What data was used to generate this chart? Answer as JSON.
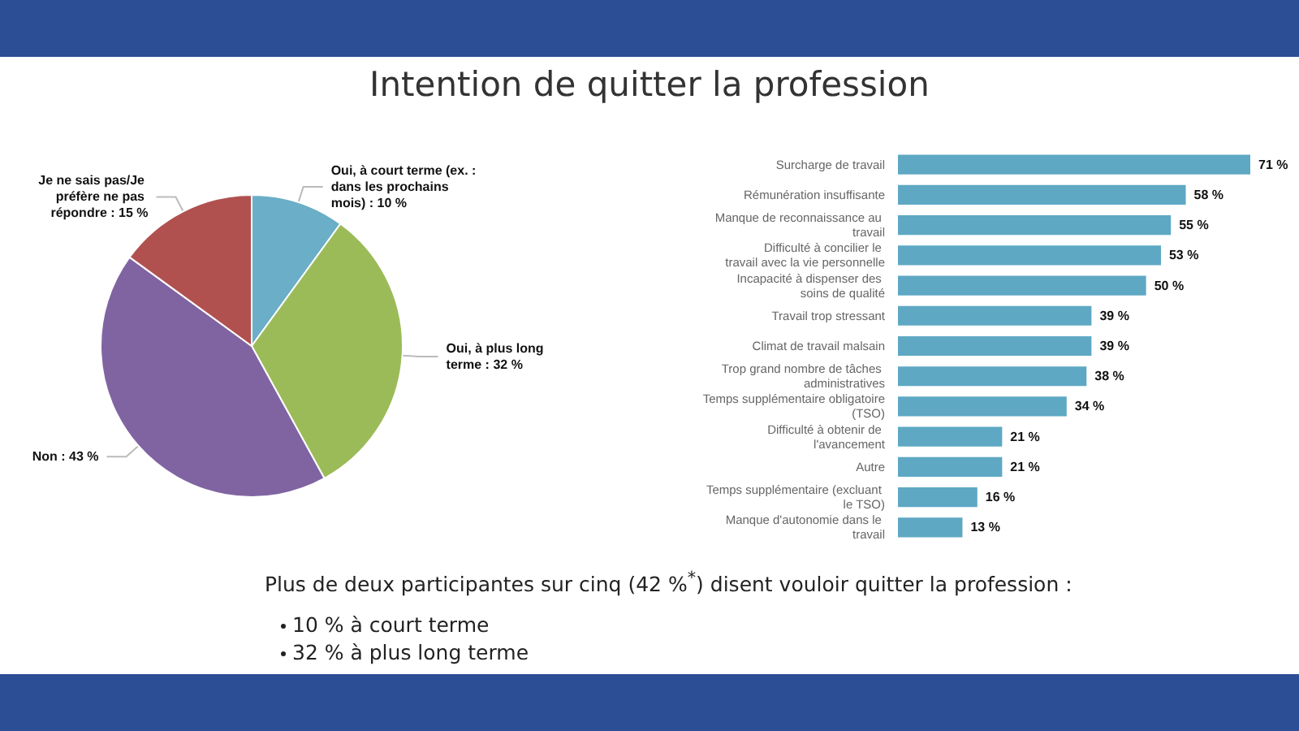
{
  "chart_data": [
    {
      "type": "pie",
      "title": "Intention de quitter la profession",
      "categories": [
        "Oui, à court terme (ex. : dans les prochains mois)",
        "Oui, à plus long terme",
        "Non",
        "Je ne sais pas/Je préfère ne pas répondre"
      ],
      "values": [
        10,
        32,
        43,
        15
      ],
      "value_labels": [
        "10 %",
        "32 %",
        "43 %",
        "15 %"
      ],
      "colors": [
        "#6aaec8",
        "#9bbb59",
        "#8064a2",
        "#b05150"
      ],
      "legend": false,
      "annotations": [
        "Plus de deux participantes sur cinq (42 %$^{*}$) disent vouloir quitter la profession :",
        "10 % à court terme",
        "32 % à plus long terme"
      ]
    },
    {
      "type": "bar",
      "orientation": "horizontal",
      "categories": [
        "Surcharge de travail",
        "Rémunération insuffisante",
        "Manque de reconnaissance au travail",
        "Difficulté à concilier le travail avec la vie personnelle",
        "Incapacité à dispenser des soins de qualité",
        "Travail trop stressant",
        "Climat de travail malsain",
        "Trop grand nombre de tâches administratives",
        "Temps supplémentaire obligatoire (TSO)",
        "Difficulté à obtenir de l'avancement",
        "Autre",
        "Temps supplémentaire (excluant le TSO)",
        "Manque d'autonomie dans le travail"
      ],
      "values": [
        71,
        58,
        55,
        53,
        50,
        39,
        39,
        38,
        34,
        21,
        21,
        16,
        13
      ],
      "value_labels": [
        "71 %",
        "58 %",
        "55 %",
        "53 %",
        "50 %",
        "39 %",
        "39 %",
        "38 %",
        "34 %",
        "21 %",
        "21 %",
        "16 %",
        "13 %"
      ],
      "color": "#5ea8c4",
      "legend": false
    }
  ]
}
